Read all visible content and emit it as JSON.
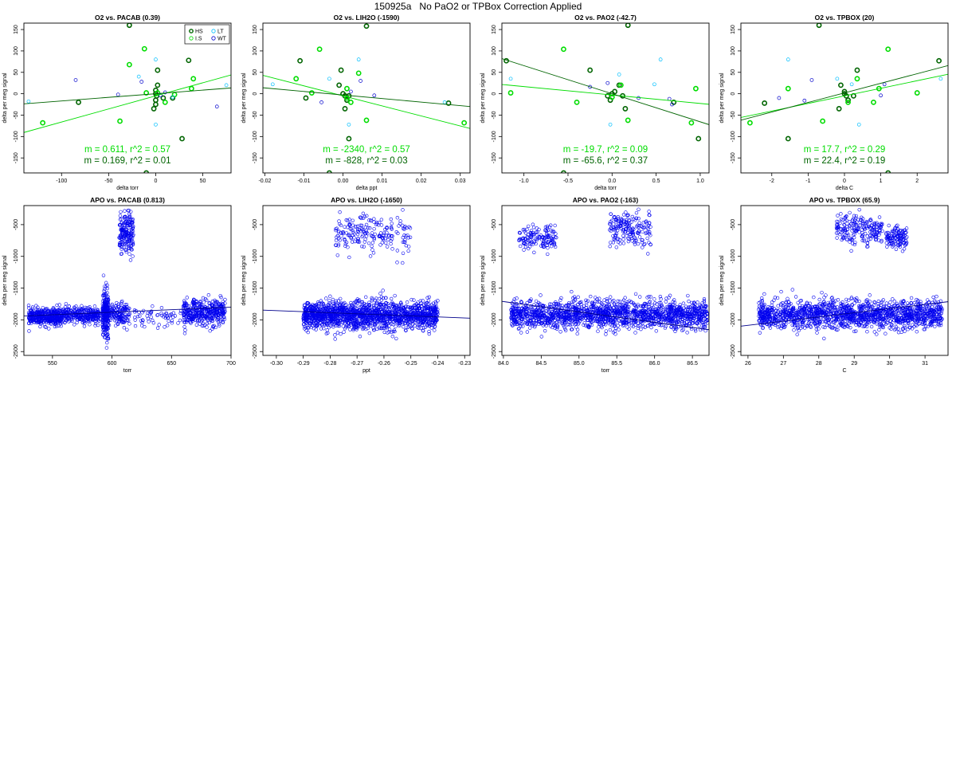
{
  "page": {
    "title": "150925a   No PaO2 or TPBox Correction Applied"
  },
  "chart_data": [
    {
      "type": "scatter",
      "title": "O2 vs. PACAB (0.39)",
      "xlabel": "delta torr",
      "ylabel": "delta per meg signal",
      "xlim": [
        -140,
        80
      ],
      "ylim": [
        -185,
        165
      ],
      "xticks": [
        -100,
        -50,
        0,
        50
      ],
      "yticks": [
        -150,
        -100,
        -50,
        0,
        50,
        100,
        150
      ],
      "legend": {
        "placement": "top-right",
        "entries": [
          {
            "label": "HS",
            "color": "#006400",
            "marker": "circle-thick"
          },
          {
            "label": "LT",
            "color": "#00bfff",
            "marker": "circle"
          },
          {
            "label": "I.S",
            "color": "#00dd00",
            "marker": "circle"
          },
          {
            "label": "WT",
            "color": "#0000cc",
            "marker": "circle"
          }
        ]
      },
      "series": [
        {
          "group": "HS",
          "color": "#006400",
          "points": [
            [
              -28,
              160
            ],
            [
              35,
              78
            ],
            [
              2,
              55
            ],
            [
              2,
              20
            ],
            [
              0,
              8
            ],
            [
              0,
              0
            ],
            [
              1,
              -5
            ],
            [
              0,
              -15
            ],
            [
              0,
              -25
            ],
            [
              -2,
              -35
            ],
            [
              -82,
              -20
            ],
            [
              8,
              -10
            ],
            [
              18,
              -10
            ],
            [
              28,
              -105
            ],
            [
              -10,
              -185
            ]
          ]
        },
        {
          "group": "I.S",
          "color": "#00dd00",
          "points": [
            [
              -12,
              105
            ],
            [
              -28,
              68
            ],
            [
              40,
              35
            ],
            [
              -120,
              -68
            ],
            [
              -38,
              -64
            ],
            [
              10,
              -20
            ],
            [
              38,
              12
            ],
            [
              -10,
              2
            ],
            [
              2,
              2
            ],
            [
              20,
              -2
            ]
          ]
        },
        {
          "group": "LT",
          "color": "#00bfff",
          "points": [
            [
              0,
              80
            ],
            [
              -135,
              -18
            ],
            [
              0,
              -72
            ],
            [
              75,
              20
            ],
            [
              18,
              -8
            ],
            [
              -18,
              40
            ]
          ]
        },
        {
          "group": "WT",
          "color": "#0000cc",
          "points": [
            [
              -85,
              32
            ],
            [
              -40,
              -2
            ],
            [
              5,
              -4
            ],
            [
              10,
              3
            ],
            [
              65,
              -30
            ],
            [
              -15,
              28
            ]
          ]
        }
      ],
      "fits": [
        {
          "label": "m = 0.611, r^2 = 0.57",
          "color": "#00dd00",
          "slope": 0.611,
          "intercept": -5
        },
        {
          "label": "m = 0.169, r^2 = 0.01",
          "color": "#006400",
          "slope": 0.169,
          "intercept": 0
        }
      ]
    },
    {
      "type": "scatter",
      "title": "O2 vs. LIH2O (-1590)",
      "xlabel": "delta ppt",
      "ylabel": "delta per meg signal",
      "xlim": [
        -0.0205,
        0.0325
      ],
      "ylim": [
        -185,
        165
      ],
      "xticks": [
        -0.02,
        -0.01,
        0.0,
        0.01,
        0.02,
        0.03
      ],
      "xtick_labels": [
        "-0.02",
        "-0.01",
        "0.00",
        "0.01",
        "0.02",
        "0.03"
      ],
      "yticks": [
        -150,
        -100,
        -50,
        0,
        50,
        100,
        150
      ],
      "series": [
        {
          "group": "HS",
          "color": "#006400",
          "points": [
            [
              0.006,
              158
            ],
            [
              -0.011,
              77
            ],
            [
              -0.0005,
              55
            ],
            [
              -0.001,
              20
            ],
            [
              0,
              0
            ],
            [
              0.0005,
              -5
            ],
            [
              0.001,
              -15
            ],
            [
              0.0005,
              -35
            ],
            [
              0.0015,
              -5
            ],
            [
              -0.0095,
              -10
            ],
            [
              0.027,
              -22
            ],
            [
              0.0015,
              -105
            ],
            [
              -0.0035,
              -185
            ]
          ]
        },
        {
          "group": "I.S",
          "color": "#00dd00",
          "points": [
            [
              -0.006,
              104
            ],
            [
              0.004,
              48
            ],
            [
              -0.012,
              35
            ],
            [
              -0.008,
              2
            ],
            [
              0.006,
              -62
            ],
            [
              0.031,
              -68
            ],
            [
              0.001,
              12
            ],
            [
              0.001,
              -10
            ],
            [
              0.002,
              -20
            ]
          ]
        },
        {
          "group": "LT",
          "color": "#00bfff",
          "points": [
            [
              0.004,
              80
            ],
            [
              -0.0035,
              35
            ],
            [
              0.0015,
              -72
            ],
            [
              -0.018,
              22
            ],
            [
              0.026,
              -20
            ]
          ]
        },
        {
          "group": "WT",
          "color": "#0000cc",
          "points": [
            [
              0.0045,
              30
            ],
            [
              -0.0055,
              -20
            ],
            [
              0.008,
              -4
            ],
            [
              0.002,
              5
            ]
          ]
        }
      ],
      "fits": [
        {
          "label": "m = -2340, r^2 = 0.57",
          "color": "#00dd00",
          "slope": -2340,
          "intercept": -5
        },
        {
          "label": "m = -828, r^2 = 0.03",
          "color": "#006400",
          "slope": -828,
          "intercept": -3
        }
      ]
    },
    {
      "type": "scatter",
      "title": "O2 vs. PAO2 (-42.7)",
      "xlabel": "delta torr",
      "ylabel": "delta per meg signal",
      "xlim": [
        -1.25,
        1.1
      ],
      "ylim": [
        -185,
        165
      ],
      "xticks": [
        -1.0,
        -0.5,
        0.0,
        0.5,
        1.0
      ],
      "xtick_labels": [
        "-1.0",
        "-0.5",
        "0.0",
        "0.5",
        "1.0"
      ],
      "yticks": [
        -150,
        -100,
        -50,
        0,
        50,
        100,
        150
      ],
      "series": [
        {
          "group": "HS",
          "color": "#006400",
          "points": [
            [
              -1.2,
              77
            ],
            [
              0.18,
              160
            ],
            [
              -0.25,
              55
            ],
            [
              0.08,
              20
            ],
            [
              0.03,
              5
            ],
            [
              0,
              0
            ],
            [
              -0.05,
              -5
            ],
            [
              -0.02,
              -15
            ],
            [
              0.12,
              -5
            ],
            [
              0.15,
              -35
            ],
            [
              0.7,
              -20
            ],
            [
              0.98,
              -105
            ],
            [
              -0.55,
              -185
            ]
          ]
        },
        {
          "group": "I.S",
          "color": "#00dd00",
          "points": [
            [
              -0.55,
              104
            ],
            [
              -1.15,
              2
            ],
            [
              -0.4,
              -20
            ],
            [
              0.18,
              -62
            ],
            [
              0.9,
              -68
            ],
            [
              0.95,
              12
            ],
            [
              0.1,
              20
            ],
            [
              0,
              -8
            ]
          ]
        },
        {
          "group": "LT",
          "color": "#00bfff",
          "points": [
            [
              0.55,
              80
            ],
            [
              -1.15,
              35
            ],
            [
              -0.02,
              -72
            ],
            [
              0.48,
              22
            ],
            [
              0.08,
              45
            ]
          ]
        },
        {
          "group": "WT",
          "color": "#0000cc",
          "points": [
            [
              -0.25,
              16
            ],
            [
              0.65,
              -12
            ],
            [
              0.68,
              -25
            ],
            [
              0.3,
              -10
            ],
            [
              -0.05,
              25
            ]
          ]
        }
      ],
      "fits": [
        {
          "label": "m = -19.7, r^2 = 0.09",
          "color": "#00dd00",
          "slope": -19.7,
          "intercept": -3
        },
        {
          "label": "m = -65.6, r^2 = 0.37",
          "color": "#006400",
          "slope": -65.6,
          "intercept": 0
        }
      ]
    },
    {
      "type": "scatter",
      "title": "O2 vs. TPBOX (20)",
      "xlabel": "delta C",
      "ylabel": "delta per meg signal",
      "xlim": [
        -2.85,
        2.85
      ],
      "ylim": [
        -185,
        165
      ],
      "xticks": [
        -2,
        -1,
        0,
        1,
        2
      ],
      "yticks": [
        -150,
        -100,
        -50,
        0,
        50,
        100,
        150
      ],
      "series": [
        {
          "group": "HS",
          "color": "#006400",
          "points": [
            [
              -0.7,
              160
            ],
            [
              2.6,
              77
            ],
            [
              0.35,
              55
            ],
            [
              -0.1,
              20
            ],
            [
              0,
              5
            ],
            [
              0,
              0
            ],
            [
              0.05,
              -5
            ],
            [
              0.1,
              -15
            ],
            [
              -0.15,
              -35
            ],
            [
              -2.2,
              -22
            ],
            [
              0.25,
              -5
            ],
            [
              -1.55,
              -105
            ],
            [
              1.2,
              -185
            ]
          ]
        },
        {
          "group": "I.S",
          "color": "#00dd00",
          "points": [
            [
              1.2,
              104
            ],
            [
              0.35,
              35
            ],
            [
              -1.55,
              12
            ],
            [
              0.95,
              12
            ],
            [
              2,
              2
            ],
            [
              -2.6,
              -68
            ],
            [
              -0.6,
              -64
            ],
            [
              0.8,
              -20
            ],
            [
              0.1,
              -20
            ]
          ]
        },
        {
          "group": "LT",
          "color": "#00bfff",
          "points": [
            [
              -1.55,
              80
            ],
            [
              0.4,
              -72
            ],
            [
              -0.2,
              35
            ],
            [
              2.65,
              35
            ],
            [
              0.2,
              22
            ]
          ]
        },
        {
          "group": "WT",
          "color": "#0000cc",
          "points": [
            [
              -0.9,
              32
            ],
            [
              -1.1,
              -16
            ],
            [
              1,
              -4
            ],
            [
              1.1,
              22
            ],
            [
              -1.8,
              -10
            ]
          ]
        }
      ],
      "fits": [
        {
          "label": "m = 17.7, r^2 = 0.29",
          "color": "#00dd00",
          "slope": 17.7,
          "intercept": -5
        },
        {
          "label": "m = 22.4, r^2 = 0.19",
          "color": "#006400",
          "slope": 22.4,
          "intercept": 2
        }
      ]
    },
    {
      "type": "scatter",
      "title": "APO vs. PACAB (0.813)",
      "xlabel": "torr",
      "ylabel": "delta per meg signal",
      "xlim": [
        526,
        700
      ],
      "ylim": [
        -2560,
        -200
      ],
      "xticks": [
        550,
        600,
        650,
        700
      ],
      "yticks": [
        -2500,
        -2000,
        -1500,
        -1000,
        -500
      ],
      "color": "#0000ee",
      "clusters": [
        {
          "x": [
            530,
            558
          ],
          "y_center": -1950,
          "y_spread": 65,
          "count": 380
        },
        {
          "x": [
            558,
            590
          ],
          "y_center": -1930,
          "y_spread": 60,
          "count": 300
        },
        {
          "x": [
            592,
            597
          ],
          "y_center": -1900,
          "y_spread": 190,
          "count": 240
        },
        {
          "x": [
            597,
            615
          ],
          "y_center": -1920,
          "y_spread": 90,
          "count": 140
        },
        {
          "x": [
            606,
            618
          ],
          "y_center": -640,
          "y_spread": 160,
          "count": 180
        },
        {
          "x": [
            617,
            660
          ],
          "y_center": -1960,
          "y_spread": 80,
          "count": 60
        },
        {
          "x": [
            660,
            695
          ],
          "y_center": -1880,
          "y_spread": 100,
          "count": 380
        }
      ],
      "fit": {
        "slope": 0.8,
        "intercept": -2360,
        "color": "#00008b"
      }
    },
    {
      "type": "scatter",
      "title": "APO vs. LIH2O (-1650)",
      "xlabel": "ppt",
      "ylabel": "delta per meg signal",
      "xlim": [
        -0.305,
        -0.228
      ],
      "ylim": [
        -2560,
        -200
      ],
      "xticks": [
        -0.3,
        -0.29,
        -0.28,
        -0.27,
        -0.26,
        -0.25,
        -0.24,
        -0.23
      ],
      "xtick_labels": [
        "-0.30",
        "-0.29",
        "-0.28",
        "-0.27",
        "-0.26",
        "-0.25",
        "-0.24",
        "-0.23"
      ],
      "yticks": [
        -2500,
        -2000,
        -1500,
        -1000,
        -500
      ],
      "color": "#0000ee",
      "clusters": [
        {
          "x": [
            -0.29,
            -0.24
          ],
          "y_center": -1930,
          "y_spread": 110,
          "count": 1600
        },
        {
          "x": [
            -0.278,
            -0.25
          ],
          "y_center": -640,
          "y_spread": 150,
          "count": 200
        }
      ],
      "fit": {
        "slope": -1650,
        "intercept": -2350,
        "color": "#00008b"
      }
    },
    {
      "type": "scatter",
      "title": "APO vs. PAO2 (-163)",
      "xlabel": "torr",
      "ylabel": "delta per meg signal",
      "xlim": [
        83.98,
        86.72
      ],
      "ylim": [
        -2560,
        -200
      ],
      "xticks": [
        84.0,
        84.5,
        85.0,
        85.5,
        86.0,
        86.5
      ],
      "xtick_labels": [
        "84.0",
        "84.5",
        "85.0",
        "85.5",
        "86.0",
        "86.5"
      ],
      "yticks": [
        -2500,
        -2000,
        -1500,
        -1000,
        -500
      ],
      "color": "#0000ee",
      "clusters": [
        {
          "x": [
            84.1,
            86.7
          ],
          "y_center": -1920,
          "y_spread": 110,
          "count": 1600
        },
        {
          "x": [
            84.2,
            84.7
          ],
          "y_center": -700,
          "y_spread": 90,
          "count": 140
        },
        {
          "x": [
            85.4,
            85.95
          ],
          "y_center": -580,
          "y_spread": 130,
          "count": 180
        }
      ],
      "fit": {
        "slope": -163,
        "intercept": 11980,
        "color": "#00008b"
      }
    },
    {
      "type": "scatter",
      "title": "APO vs. TPBOX (65.9)",
      "xlabel": "C",
      "ylabel": "delta per meg signal",
      "xlim": [
        25.8,
        31.65
      ],
      "ylim": [
        -2560,
        -200
      ],
      "xticks": [
        26,
        27,
        28,
        29,
        30,
        31
      ],
      "yticks": [
        -2500,
        -2000,
        -1500,
        -1000,
        -500
      ],
      "color": "#0000ee",
      "clusters": [
        {
          "x": [
            26.3,
            31.5
          ],
          "y_center": -1920,
          "y_spread": 110,
          "count": 1500
        },
        {
          "x": [
            28.5,
            29.8
          ],
          "y_center": -560,
          "y_spread": 120,
          "count": 200
        },
        {
          "x": [
            29.9,
            30.5
          ],
          "y_center": -700,
          "y_spread": 80,
          "count": 120
        }
      ],
      "fit": {
        "slope": 65.9,
        "intercept": -3800,
        "color": "#00008b"
      }
    }
  ]
}
